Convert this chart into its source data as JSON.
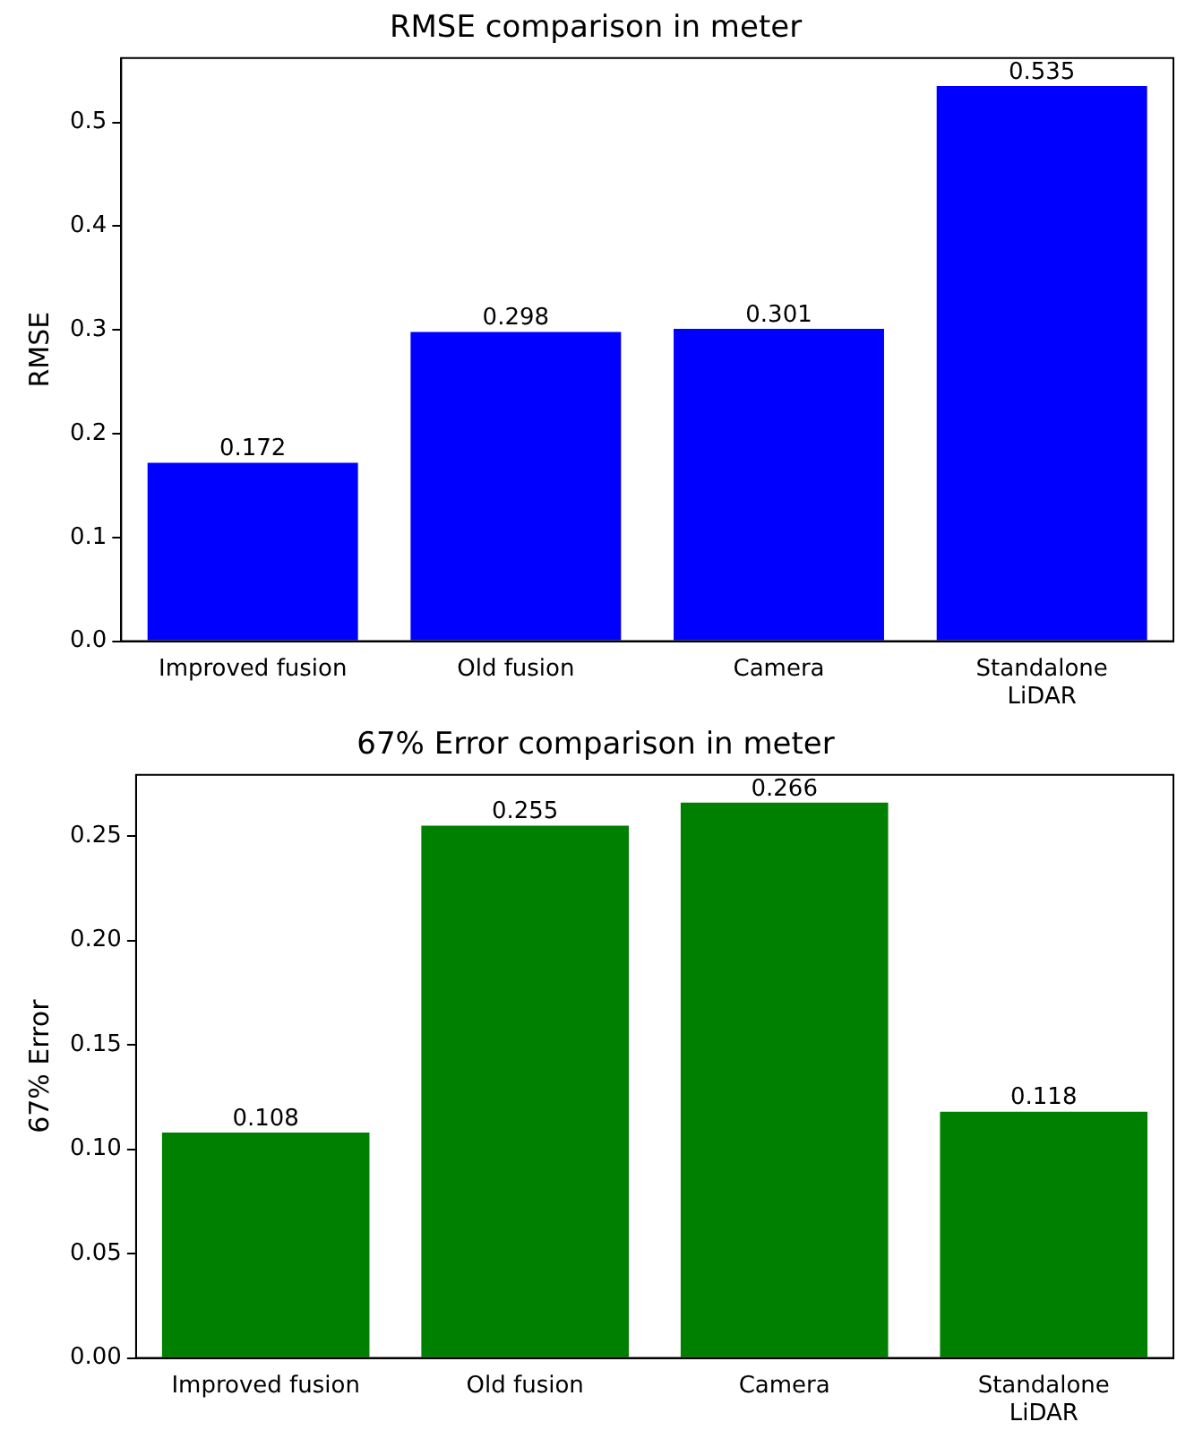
{
  "chart_data": [
    {
      "type": "bar",
      "title": "RMSE comparison in meter",
      "ylabel": "RMSE",
      "categories": [
        "Improved fusion",
        "Old fusion",
        "Camera",
        "Standalone\nLiDAR"
      ],
      "values": [
        0.172,
        0.298,
        0.301,
        0.535
      ],
      "color": "#0000ff",
      "ylim": [
        0,
        0.562
      ],
      "yticks": [
        {
          "value": 0,
          "label": "0.0"
        },
        {
          "value": 0.1,
          "label": "0.1"
        },
        {
          "value": 0.2,
          "label": "0.2"
        },
        {
          "value": 0.3,
          "label": "0.3"
        },
        {
          "value": 0.4,
          "label": "0.4"
        },
        {
          "value": 0.5,
          "label": "0.5"
        }
      ],
      "data_labels": true,
      "grid": false,
      "legend": false
    },
    {
      "type": "bar",
      "title": "67% Error comparison in meter",
      "ylabel": "67% Error",
      "categories": [
        "Improved fusion",
        "Old fusion",
        "Camera",
        "Standalone\nLiDAR"
      ],
      "values": [
        0.108,
        0.255,
        0.266,
        0.118
      ],
      "color": "#008000",
      "ylim": [
        0,
        0.2793
      ],
      "yticks": [
        {
          "value": 0,
          "label": "0.00"
        },
        {
          "value": 0.05,
          "label": "0.05"
        },
        {
          "value": 0.1,
          "label": "0.10"
        },
        {
          "value": 0.15,
          "label": "0.15"
        },
        {
          "value": 0.2,
          "label": "0.20"
        },
        {
          "value": 0.25,
          "label": "0.25"
        }
      ],
      "data_labels": true,
      "grid": false,
      "legend": false
    }
  ]
}
